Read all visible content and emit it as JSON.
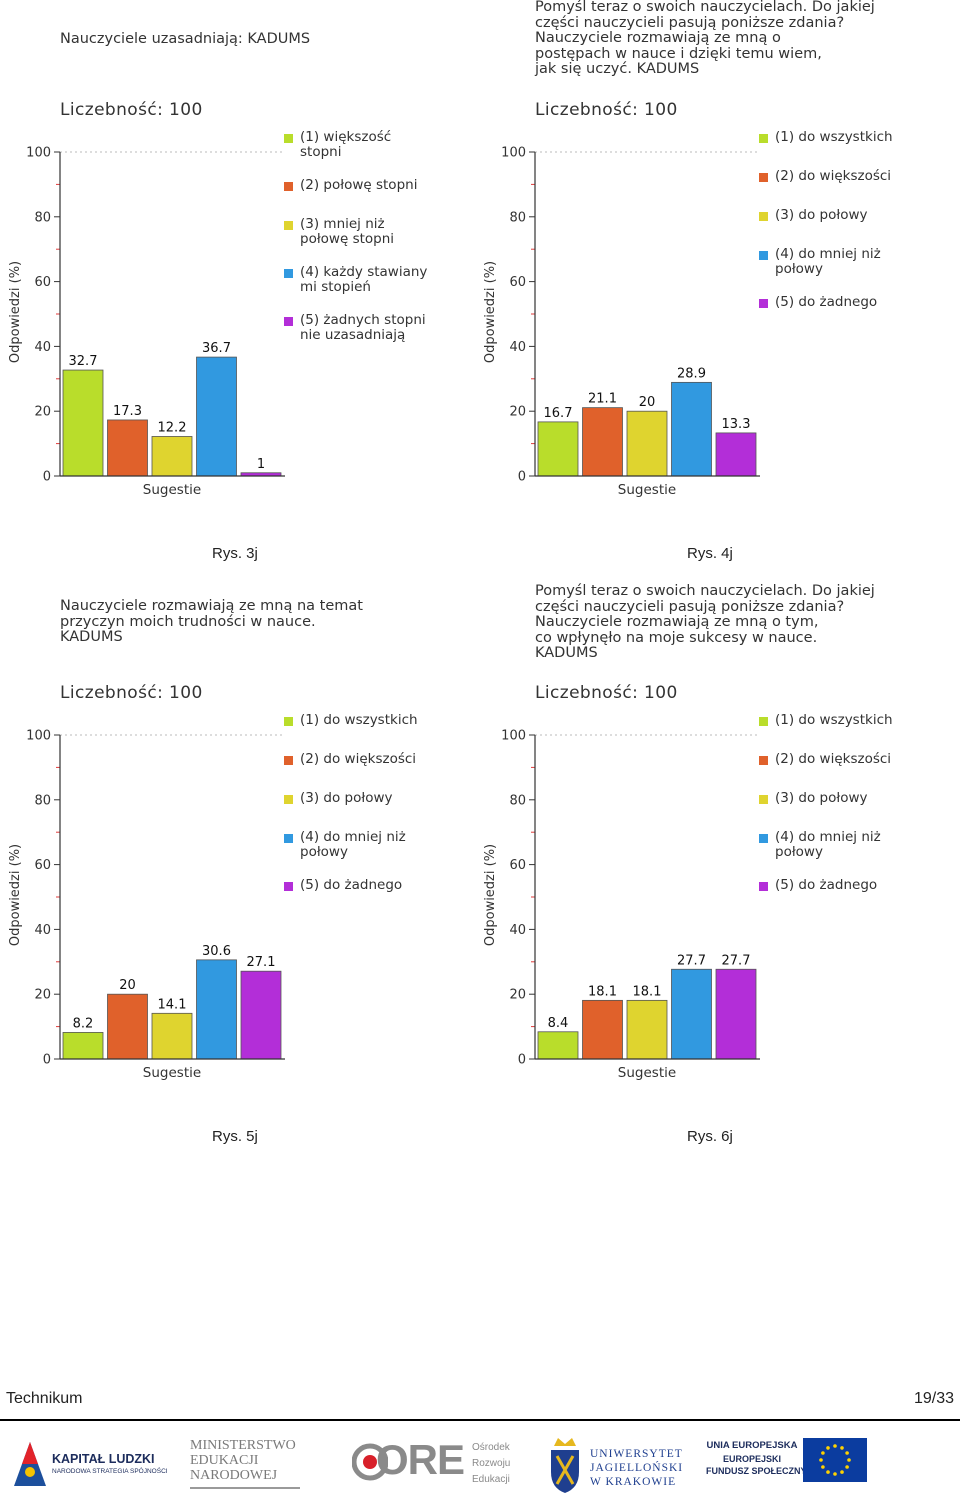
{
  "charts": [
    {
      "title": "Nauczyciele uzasadniają: KADUMS",
      "count_label": "Liczebność: 100",
      "xlabel": "Sugestie",
      "ylabel": "Odpowiedzi (%)",
      "caption": "Rys. 3j",
      "legend": [
        "(1) większość\nstopni",
        "(2) połowę stopni",
        "(3) mniej niż\npołowę stopni",
        "(4) każdy stawiany\nmi stopień",
        "(5) żadnych stopni\nnie uzasadniają"
      ],
      "values": [
        32.7,
        17.3,
        12.2,
        36.7,
        1
      ],
      "value_labels": [
        "32.7",
        "17.3",
        "12.2",
        "36.7",
        "1"
      ]
    },
    {
      "title": "Pomyśl teraz o swoich nauczycielach. Do jakiej\nczęści nauczycieli pasują poniższe zdania?\nNauczyciele rozmawiają ze mną o\npostępach w nauce i dzięki temu wiem,\njak się uczyć. KADUMS",
      "count_label": "Liczebność: 100",
      "xlabel": "Sugestie",
      "ylabel": "Odpowiedzi (%)",
      "caption": "Rys. 4j",
      "legend": [
        "(1) do wszystkich",
        "(2) do większości",
        "(3) do połowy",
        "(4) do mniej niż\npołowy",
        "(5) do żadnego"
      ],
      "values": [
        16.7,
        21.1,
        20,
        28.9,
        13.3
      ],
      "value_labels": [
        "16.7",
        "21.1",
        "20",
        "28.9",
        "13.3"
      ]
    },
    {
      "title": "Nauczyciele rozmawiają ze mną na temat\nprzyczyn moich trudności w nauce.\nKADUMS",
      "count_label": "Liczebność: 100",
      "xlabel": "Sugestie",
      "ylabel": "Odpowiedzi (%)",
      "caption": "Rys. 5j",
      "legend": [
        "(1) do wszystkich",
        "(2) do większości",
        "(3) do połowy",
        "(4) do mniej niż\npołowy",
        "(5) do żadnego"
      ],
      "values": [
        8.2,
        20,
        14.1,
        30.6,
        27.1
      ],
      "value_labels": [
        "8.2",
        "20",
        "14.1",
        "30.6",
        "27.1"
      ]
    },
    {
      "title": "Pomyśl teraz o swoich nauczycielach. Do jakiej\nczęści nauczycieli pasują poniższe zdania?\nNauczyciele rozmawiają ze mną o tym,\nco wpłynęło na moje sukcesy w nauce.\nKADUMS",
      "count_label": "Liczebność: 100",
      "xlabel": "Sugestie",
      "ylabel": "Odpowiedzi (%)",
      "caption": "Rys. 6j",
      "legend": [
        "(1) do wszystkich",
        "(2) do większości",
        "(3) do połowy",
        "(4) do mniej niż\npołowy",
        "(5) do żadnego"
      ],
      "values": [
        8.4,
        18.1,
        18.1,
        27.7,
        27.7
      ],
      "value_labels": [
        "8.4",
        "18.1",
        "18.1",
        "27.7",
        "27.7"
      ]
    }
  ],
  "chart_data": [
    {
      "type": "bar",
      "title": "Nauczyciele uzasadniają: KADUMS",
      "categories": [
        "(1)",
        "(2)",
        "(3)",
        "(4)",
        "(5)"
      ],
      "values": [
        32.7,
        17.3,
        12.2,
        36.7,
        1
      ],
      "xlabel": "Sugestie",
      "ylabel": "Odpowiedzi (%)",
      "ylim": [
        0,
        100
      ],
      "yticks": [
        "0",
        "20",
        "40",
        "60",
        "80",
        "100"
      ],
      "grid": false,
      "legend_position": "right"
    },
    {
      "type": "bar",
      "title": "Nauczyciele rozmawiają ze mną o postępach w nauce i dzięki temu wiem, jak się uczyć. KADUMS",
      "categories": [
        "(1)",
        "(2)",
        "(3)",
        "(4)",
        "(5)"
      ],
      "values": [
        16.7,
        21.1,
        20,
        28.9,
        13.3
      ],
      "xlabel": "Sugestie",
      "ylabel": "Odpowiedzi (%)",
      "ylim": [
        0,
        100
      ],
      "yticks": [
        "0",
        "20",
        "40",
        "60",
        "80",
        "100"
      ],
      "grid": false,
      "legend_position": "right"
    },
    {
      "type": "bar",
      "title": "Nauczyciele rozmawiają ze mną na temat przyczyn moich trudności w nauce. KADUMS",
      "categories": [
        "(1)",
        "(2)",
        "(3)",
        "(4)",
        "(5)"
      ],
      "values": [
        8.2,
        20,
        14.1,
        30.6,
        27.1
      ],
      "xlabel": "Sugestie",
      "ylabel": "Odpowiedzi (%)",
      "ylim": [
        0,
        100
      ],
      "yticks": [
        "0",
        "20",
        "40",
        "60",
        "80",
        "100"
      ],
      "grid": false,
      "legend_position": "right"
    },
    {
      "type": "bar",
      "title": "Nauczyciele rozmawiają ze mną o tym, co wpłynęło na moje sukcesy w nauce. KADUMS",
      "categories": [
        "(1)",
        "(2)",
        "(3)",
        "(4)",
        "(5)"
      ],
      "values": [
        8.4,
        18.1,
        18.1,
        27.7,
        27.7
      ],
      "xlabel": "Sugestie",
      "ylabel": "Odpowiedzi (%)",
      "ylim": [
        0,
        100
      ],
      "yticks": [
        "0",
        "20",
        "40",
        "60",
        "80",
        "100"
      ],
      "grid": false,
      "legend_position": "right"
    }
  ],
  "y_ticks": [
    "0",
    "20",
    "40",
    "60",
    "80",
    "100"
  ],
  "colors": [
    "#b9dd2b",
    "#e0612b",
    "#dfd42f",
    "#3199e0",
    "#b32ed8"
  ],
  "footer": {
    "left": "Technikum",
    "right": "19/33"
  },
  "logos": {
    "kapital": {
      "line1": "KAPITAŁ LUDZKI",
      "line2": "NARODOWA STRATEGIA SPÓJNOŚCI"
    },
    "men": {
      "line1": "MINISTERSTWO",
      "line2": "EDUKACJI",
      "line3": "NARODOWEJ"
    },
    "ore": {
      "mark": "ORE",
      "line1": "Ośrodek",
      "line2": "Rozwoju",
      "line3": "Edukacji"
    },
    "uj": {
      "line1": "UNIWERSYTET",
      "line2": "JAGIELLOŃSKI",
      "line3": "W KRAKOWIE"
    },
    "ue": {
      "line1": "UNIA EUROPEJSKA",
      "line2": "EUROPEJSKI",
      "line3": "FUNDUSZ SPOŁECZNY"
    }
  }
}
